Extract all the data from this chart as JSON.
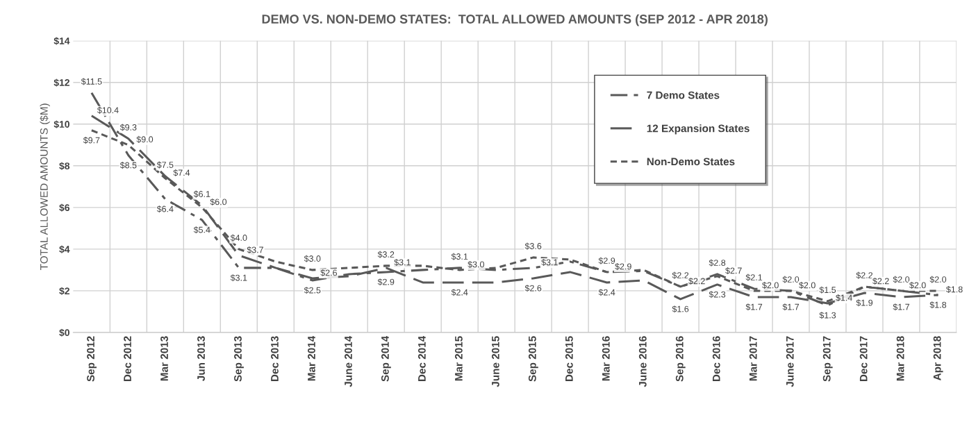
{
  "chart_data": {
    "type": "line",
    "title": "DEMO VS. NON-DEMO STATES:  TOTAL ALLOWED AMOUNTS (SEP 2012 - APR 2018)",
    "ylabel": "TOTAL ALLOWED AMOUNTS ($M)",
    "categories": [
      "Sep 2012",
      "Dec 2012",
      "Mar 2013",
      "Jun 2013",
      "Sep 2013",
      "Dec 2013",
      "Mar 2014",
      "June 2014",
      "Sep 2014",
      "Dec 2014",
      "Mar 2015",
      "June 2015",
      "Sep 2015",
      "Dec 2015",
      "Mar 2016",
      "June 2016",
      "Sep 2016",
      "Dec 2016",
      "Mar 2017",
      "June 2017",
      "Sep 2017",
      "Dec 2017",
      "Mar 2018",
      "Apr 2018"
    ],
    "series": [
      {
        "name": "7 Demo States",
        "color": "#595959",
        "line_style": "dashdot",
        "values": [
          11.5,
          8.5,
          6.4,
          5.4,
          3.1,
          3.1,
          2.5,
          2.8,
          2.9,
          3.0,
          3.1,
          3.0,
          3.1,
          3.4,
          2.9,
          2.95,
          2.2,
          2.8,
          2.1,
          2.0,
          1.3,
          2.2,
          2.0,
          1.8
        ],
        "value_labels": [
          "$11.5",
          "$8.5",
          "$6.4",
          "$5.4",
          "$3.1",
          null,
          "$2.5",
          null,
          "$2.9",
          null,
          "$3.1",
          null,
          "$3.1",
          null,
          "$2.9",
          null,
          "$2.2",
          "$2.8",
          "$2.1",
          "$2.0",
          "$1.3",
          "$2.2",
          "$2.0",
          "$1.8"
        ]
      },
      {
        "name": "12 Expansion States",
        "color": "#595959",
        "line_style": "dashed",
        "values": [
          10.4,
          9.3,
          7.5,
          6.1,
          3.7,
          3.1,
          2.6,
          2.7,
          3.1,
          2.4,
          2.4,
          2.4,
          2.6,
          2.9,
          2.4,
          2.5,
          1.6,
          2.3,
          1.7,
          1.7,
          1.4,
          1.9,
          1.7,
          1.8
        ],
        "value_labels": [
          "$10.4",
          "$9.3",
          "$7.5",
          "$6.1",
          "$3.7",
          null,
          "$2.6",
          null,
          "$3.1",
          null,
          "$2.4",
          null,
          "$2.6",
          null,
          "$2.4",
          null,
          "$1.6",
          "$2.3",
          "$1.7",
          "$1.7",
          "$1.4",
          "$1.9",
          "$1.7",
          "$1.8"
        ]
      },
      {
        "name": "Non-Demo States",
        "color": "#595959",
        "line_style": "dotted",
        "values": [
          9.7,
          9.0,
          7.4,
          6.0,
          4.0,
          3.4,
          3.0,
          3.1,
          3.2,
          3.2,
          3.0,
          3.1,
          3.6,
          3.5,
          2.9,
          3.0,
          2.2,
          2.7,
          2.0,
          2.0,
          1.5,
          2.2,
          2.0,
          2.0
        ],
        "value_labels": [
          "$9.7",
          "$9.0",
          "$7.4",
          "$6.0",
          "$4.0",
          null,
          "$3.0",
          null,
          "$3.2",
          null,
          "$3.0",
          null,
          "$3.6",
          null,
          "$2.9",
          null,
          "$2.2",
          "$2.7",
          "$2.0",
          "$2.0",
          "$1.5",
          "$2.2",
          "$2.0",
          "$2.0"
        ]
      }
    ],
    "ylim": [
      0,
      14
    ],
    "yticks": [
      {
        "value": 0,
        "label": "$0"
      },
      {
        "value": 2,
        "label": "$2"
      },
      {
        "value": 4,
        "label": "$4"
      },
      {
        "value": 6,
        "label": "$6"
      },
      {
        "value": 8,
        "label": "$8"
      },
      {
        "value": 10,
        "label": "$10"
      },
      {
        "value": 12,
        "label": "$12"
      },
      {
        "value": 14,
        "label": "$14"
      }
    ],
    "grid": true,
    "legend": "top right"
  }
}
